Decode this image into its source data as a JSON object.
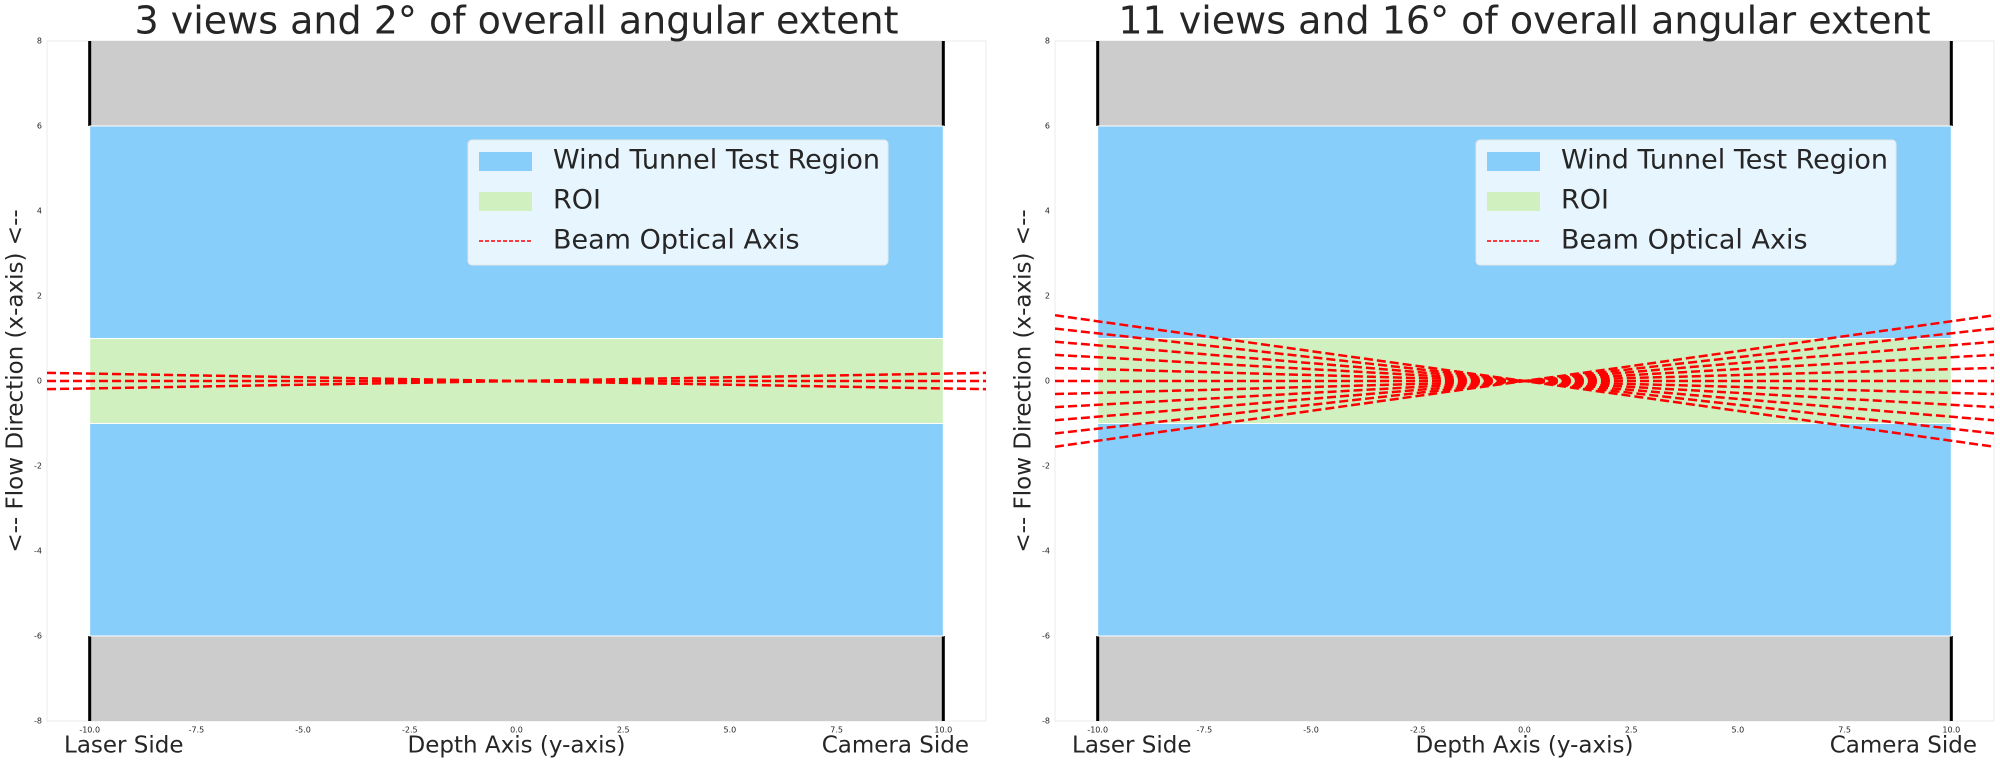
{
  "chart_data": [
    {
      "type": "beam-diagram",
      "title": "3 views and 2° of overall angular extent",
      "xlabel": "Depth Axis (y-axis)",
      "ylabel": "<-- Flow Direction (x-axis) <--",
      "left_label": "Laser Side",
      "right_label": "Camera Side",
      "xlim": [
        -11,
        11
      ],
      "ylim": [
        -8,
        8
      ],
      "xticks": [
        {
          "value": -10,
          "label": "-10.0"
        },
        -7.5,
        {
          "value": -5,
          "label": "-5.0"
        },
        -2.5,
        {
          "value": 0,
          "label": "0.0"
        },
        2.5,
        {
          "value": 5,
          "label": "5.0"
        },
        7.5,
        {
          "value": 10,
          "label": "10.0"
        }
      ],
      "yticks": [
        -8,
        -6,
        -4,
        -2,
        0,
        2,
        4,
        6,
        8
      ],
      "walls": {
        "color": "#cccccc",
        "edge_color": "#000000",
        "edges": [
          -10,
          10
        ],
        "bands": [
          [
            6,
            8
          ],
          [
            -8,
            -6
          ]
        ]
      },
      "regions": [
        {
          "name": "Wind Tunnel Test Region",
          "color": "#87cefa",
          "xrange": [
            -10,
            10
          ],
          "yrange": [
            -6,
            6
          ]
        },
        {
          "name": "ROI",
          "color": "#d0f0c0",
          "xrange": [
            -10,
            10
          ],
          "yrange": [
            -1,
            1
          ]
        }
      ],
      "beams": {
        "name": "Beam Optical Axis",
        "color": "#ff0000",
        "angles": [
          -1,
          0,
          1
        ]
      }
    },
    {
      "type": "beam-diagram",
      "title": "11 views and 16° of overall angular extent",
      "xlabel": "Depth Axis (y-axis)",
      "ylabel": "<-- Flow Direction (x-axis) <--",
      "left_label": "Laser Side",
      "right_label": "Camera Side",
      "xlim": [
        -11,
        11
      ],
      "ylim": [
        -8,
        8
      ],
      "xticks": [
        {
          "value": -10,
          "label": "-10.0"
        },
        -7.5,
        {
          "value": -5,
          "label": "-5.0"
        },
        -2.5,
        {
          "value": 0,
          "label": "0.0"
        },
        2.5,
        {
          "value": 5,
          "label": "5.0"
        },
        7.5,
        {
          "value": 10,
          "label": "10.0"
        }
      ],
      "yticks": [
        -8,
        -6,
        -4,
        -2,
        0,
        2,
        4,
        6,
        8
      ],
      "walls": {
        "color": "#cccccc",
        "edge_color": "#000000",
        "edges": [
          -10,
          10
        ],
        "bands": [
          [
            6,
            8
          ],
          [
            -8,
            -6
          ]
        ]
      },
      "regions": [
        {
          "name": "Wind Tunnel Test Region",
          "color": "#87cefa",
          "xrange": [
            -10,
            10
          ],
          "yrange": [
            -6,
            6
          ]
        },
        {
          "name": "ROI",
          "color": "#d0f0c0",
          "xrange": [
            -10,
            10
          ],
          "yrange": [
            -1,
            1
          ]
        }
      ],
      "beams": {
        "name": "Beam Optical Axis",
        "color": "#ff0000",
        "angles": [
          -8,
          -6.4,
          -4.8,
          -3.2,
          -1.6,
          0,
          1.6,
          3.2,
          4.8,
          6.4,
          8
        ]
      }
    }
  ]
}
